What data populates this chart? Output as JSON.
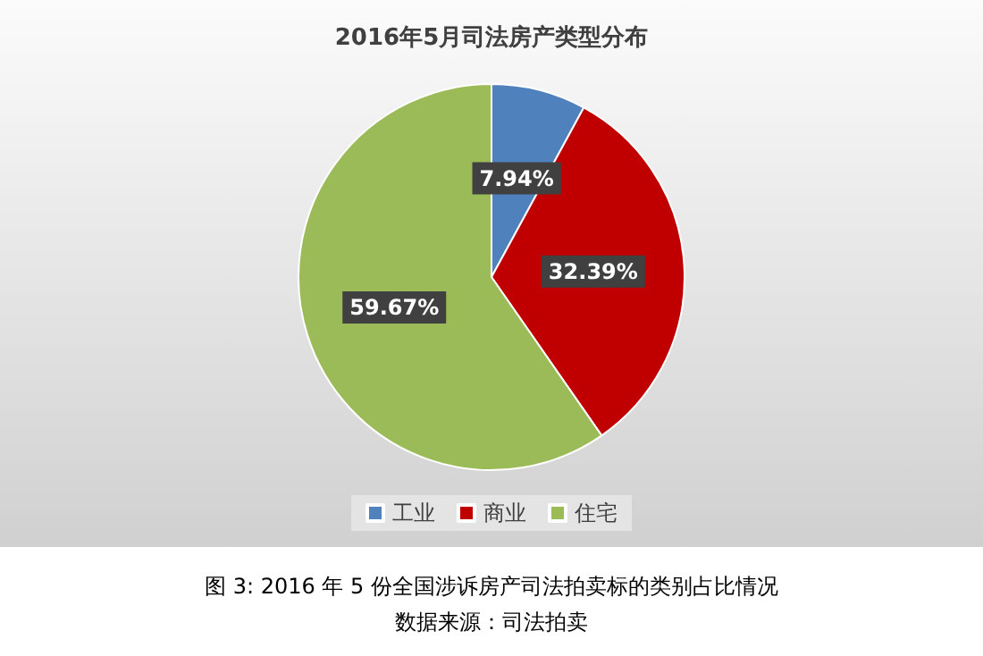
{
  "chart_data": {
    "type": "pie",
    "title": "2016年5月司法房产类型分布",
    "categories": [
      "工业",
      "商业",
      "住宅"
    ],
    "values": [
      7.94,
      32.39,
      59.67
    ],
    "colors": [
      "#4f81bd",
      "#c00000",
      "#9bbb59"
    ],
    "value_labels": [
      "7.94%",
      "32.39%",
      "59.67%"
    ],
    "legend": "bottom",
    "annotations": [
      "图 3: 2016 年 5 份全国涉诉房产司法拍卖标的类别占比情况",
      "数据来源：司法拍卖"
    ]
  }
}
